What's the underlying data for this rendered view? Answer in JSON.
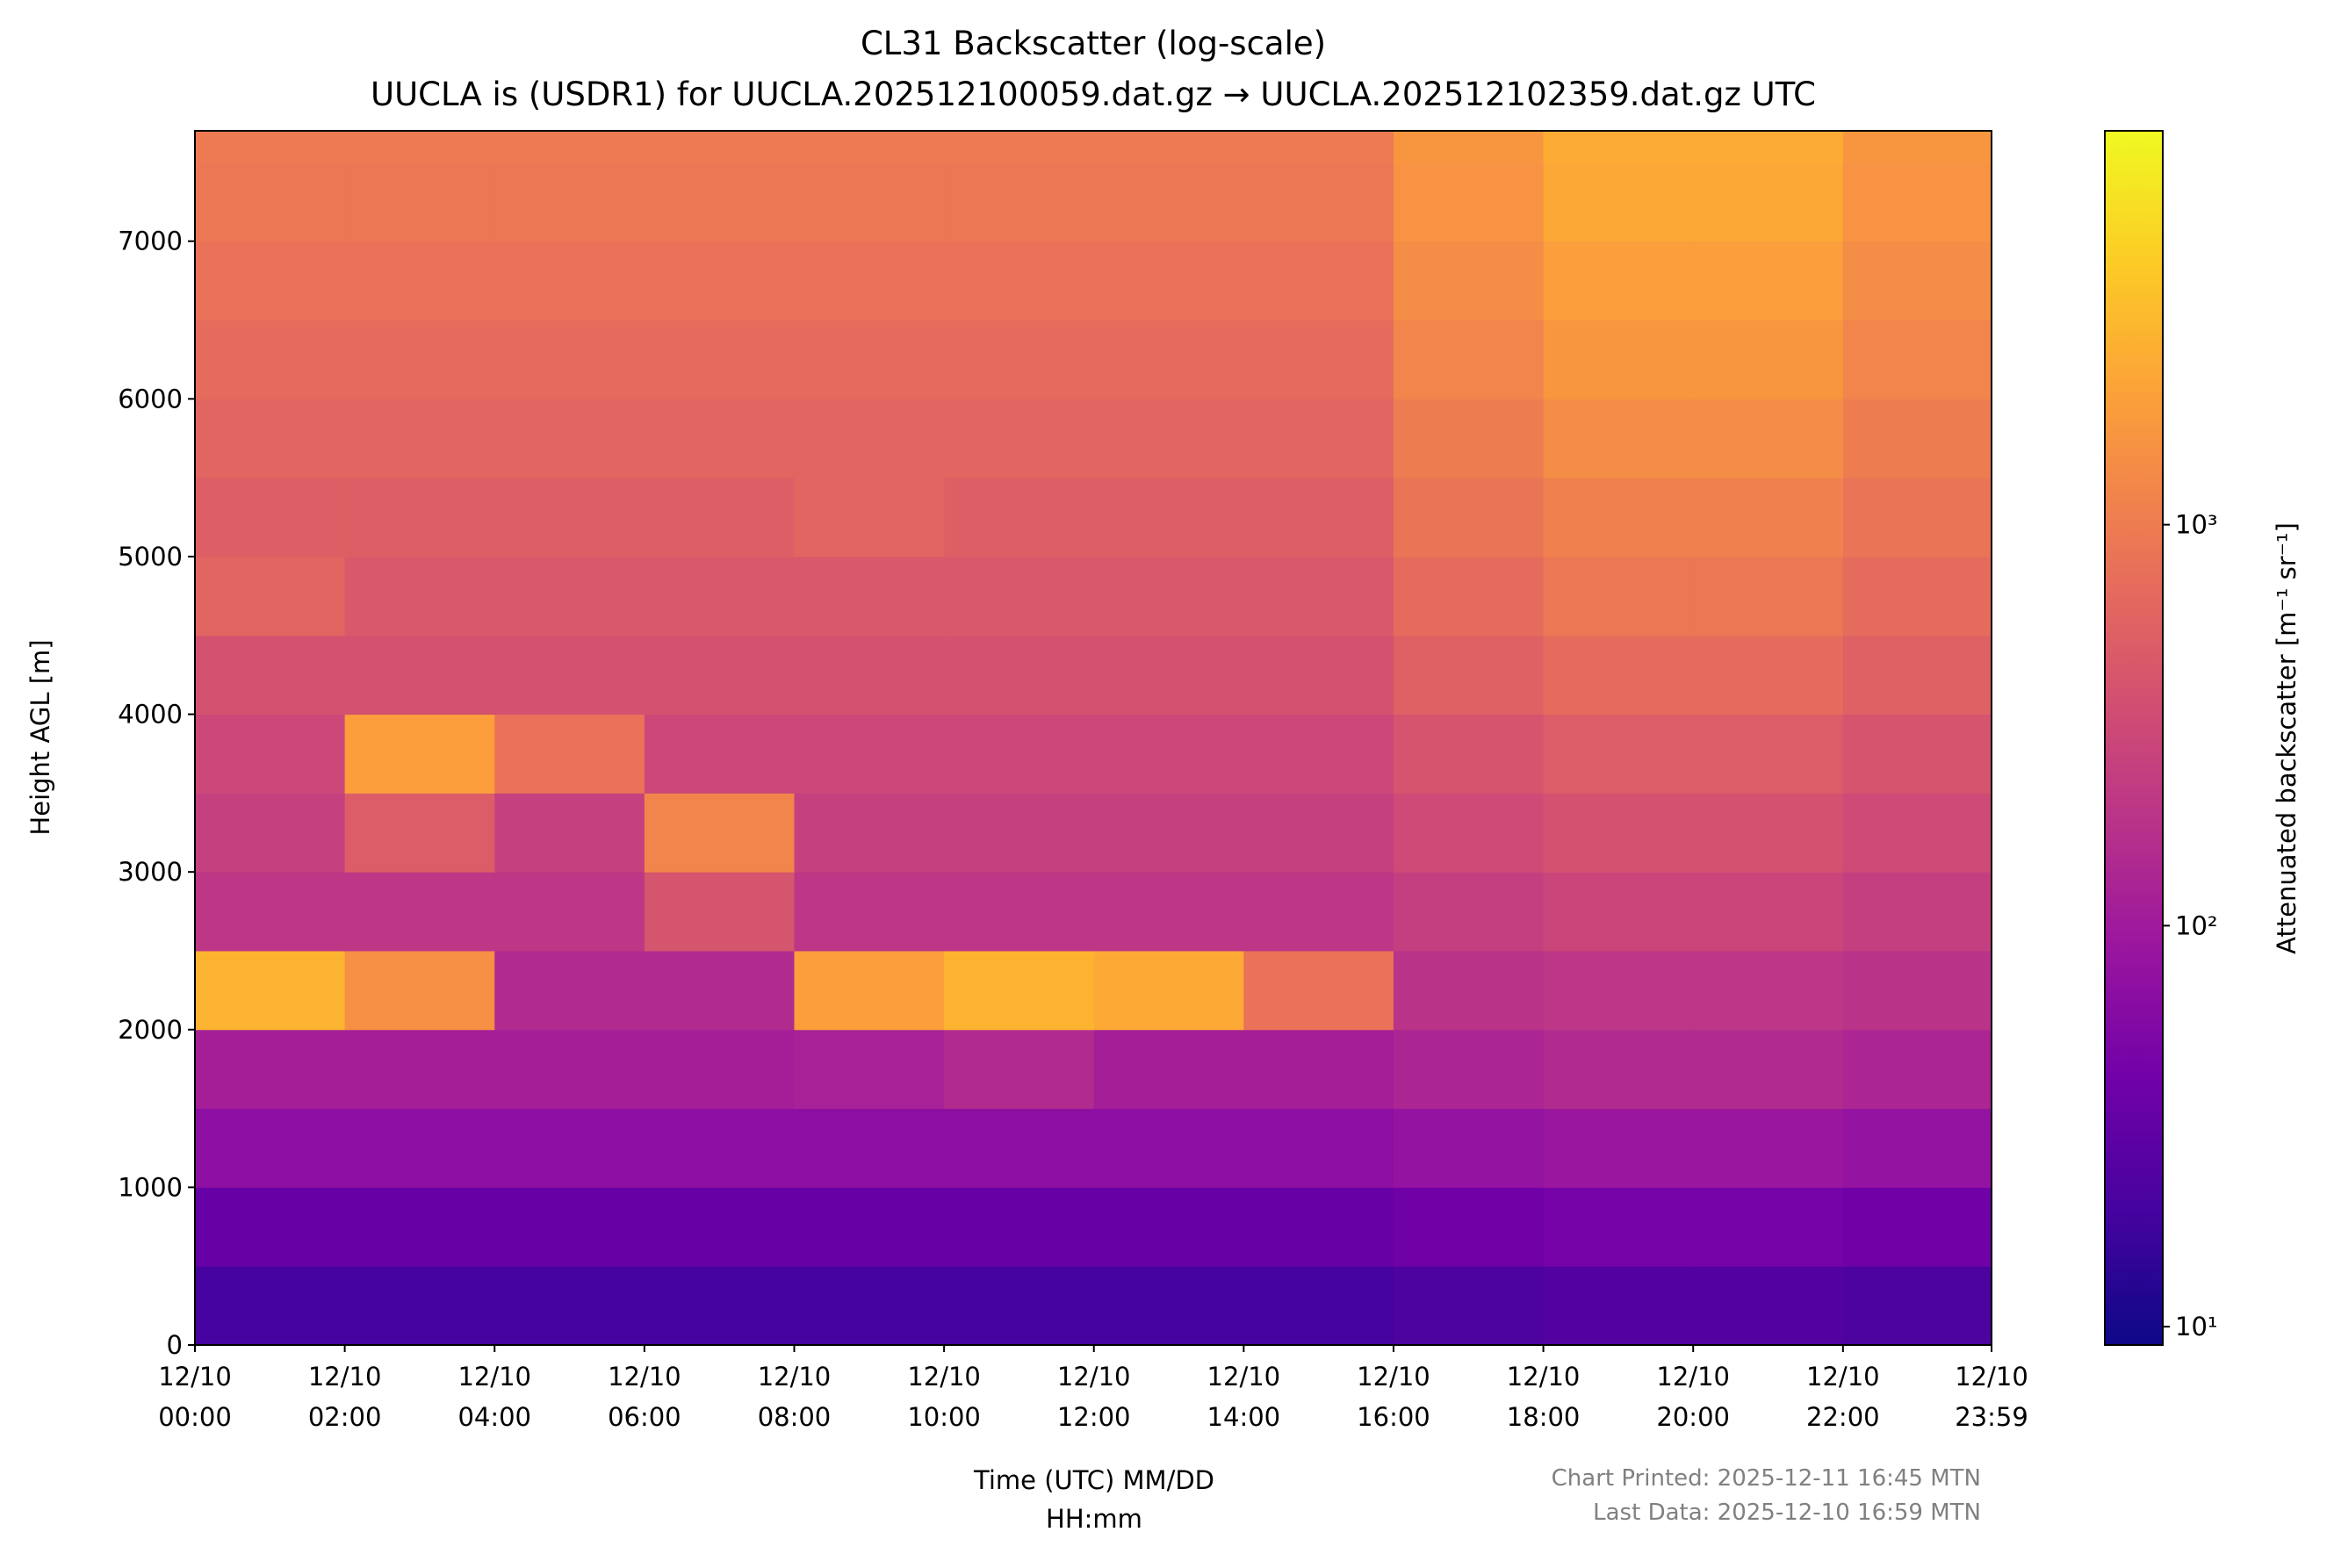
{
  "chart_data": {
    "type": "heatmap",
    "title": "CL31 Backscatter (log-scale)",
    "subtitle": "UUCLA is (USDR1) for UUCLA.202512100059.dat.gz → UUCLA.202512102359.dat.gz UTC",
    "x_label": [
      "Time (UTC) MM/DD",
      "HH:mm"
    ],
    "y_label": "Height AGL [m]",
    "colorbar_label": "Attenuated backscatter [m⁻¹ sr⁻¹]",
    "footnotes": [
      "Chart Printed: 2025-12-11 16:45 MTN",
      "Last Data: 2025-12-10 16:59 MTN"
    ],
    "xlim": [
      0,
      23.983
    ],
    "xticks": [
      {
        "value": 0,
        "label": [
          "12/10",
          "00:00"
        ]
      },
      {
        "value": 2,
        "label": [
          "12/10",
          "02:00"
        ]
      },
      {
        "value": 4,
        "label": [
          "12/10",
          "04:00"
        ]
      },
      {
        "value": 6,
        "label": [
          "12/10",
          "06:00"
        ]
      },
      {
        "value": 8,
        "label": [
          "12/10",
          "08:00"
        ]
      },
      {
        "value": 10,
        "label": [
          "12/10",
          "10:00"
        ]
      },
      {
        "value": 12,
        "label": [
          "12/10",
          "12:00"
        ]
      },
      {
        "value": 14,
        "label": [
          "12/10",
          "14:00"
        ]
      },
      {
        "value": 16,
        "label": [
          "12/10",
          "16:00"
        ]
      },
      {
        "value": 18,
        "label": [
          "12/10",
          "18:00"
        ]
      },
      {
        "value": 20,
        "label": [
          "12/10",
          "20:00"
        ]
      },
      {
        "value": 22,
        "label": [
          "12/10",
          "22:00"
        ]
      },
      {
        "value": 23.983,
        "label": [
          "12/10",
          "23:59"
        ]
      }
    ],
    "ylim": [
      0,
      7700
    ],
    "yticks": [
      0,
      1000,
      2000,
      3000,
      4000,
      5000,
      6000,
      7000
    ],
    "x_bins": [
      0,
      2,
      4,
      6,
      8,
      10,
      12,
      14,
      16,
      18,
      20,
      22,
      23.983
    ],
    "y_bins": [
      0,
      500,
      1000,
      1500,
      2000,
      2500,
      3000,
      3500,
      4000,
      4500,
      5000,
      5500,
      6000,
      6500,
      7000,
      7500,
      7700
    ],
    "z": [
      [
        20,
        20,
        20,
        20,
        20,
        20,
        20,
        20,
        22,
        24,
        24,
        22
      ],
      [
        35,
        35,
        35,
        35,
        35,
        35,
        35,
        35,
        40,
        45,
        45,
        40
      ],
      [
        70,
        70,
        70,
        70,
        70,
        70,
        70,
        70,
        80,
        90,
        90,
        80
      ],
      [
        110,
        110,
        110,
        110,
        120,
        150,
        110,
        110,
        130,
        150,
        150,
        130
      ],
      [
        3000,
        1500,
        150,
        150,
        2000,
        3000,
        2500,
        800,
        180,
        200,
        200,
        180
      ],
      [
        200,
        200,
        200,
        400,
        200,
        200,
        200,
        200,
        240,
        280,
        280,
        240
      ],
      [
        250,
        500,
        250,
        1200,
        250,
        250,
        250,
        250,
        320,
        380,
        380,
        320
      ],
      [
        300,
        2000,
        800,
        300,
        300,
        300,
        300,
        300,
        400,
        500,
        500,
        400
      ],
      [
        380,
        380,
        380,
        380,
        380,
        380,
        380,
        380,
        550,
        700,
        700,
        550
      ],
      [
        600,
        450,
        450,
        450,
        450,
        450,
        450,
        450,
        700,
        900,
        900,
        700
      ],
      [
        520,
        520,
        520,
        520,
        600,
        520,
        520,
        520,
        850,
        1100,
        1100,
        850
      ],
      [
        600,
        600,
        600,
        600,
        600,
        600,
        600,
        600,
        1000,
        1400,
        1400,
        1000
      ],
      [
        700,
        700,
        700,
        700,
        700,
        700,
        700,
        700,
        1200,
        1700,
        1700,
        1200
      ],
      [
        800,
        800,
        800,
        800,
        800,
        800,
        800,
        800,
        1400,
        2000,
        2000,
        1400
      ],
      [
        900,
        900,
        900,
        900,
        900,
        900,
        900,
        900,
        1600,
        2400,
        2400,
        1600
      ],
      [
        950,
        950,
        950,
        950,
        950,
        950,
        950,
        950,
        1700,
        2600,
        2600,
        1700
      ]
    ],
    "clim": [
      9,
      9600
    ],
    "log_scale_color": true,
    "colormap": [
      "#0d0887",
      "#46039f",
      "#7201a8",
      "#9c179e",
      "#bd3786",
      "#d8576b",
      "#ed7953",
      "#fb9f3a",
      "#fdca26",
      "#f0f921"
    ],
    "colorbar_ticks": [
      {
        "value": 10,
        "label": "10¹"
      },
      {
        "value": 100,
        "label": "10²"
      },
      {
        "value": 1000,
        "label": "10³"
      }
    ]
  }
}
